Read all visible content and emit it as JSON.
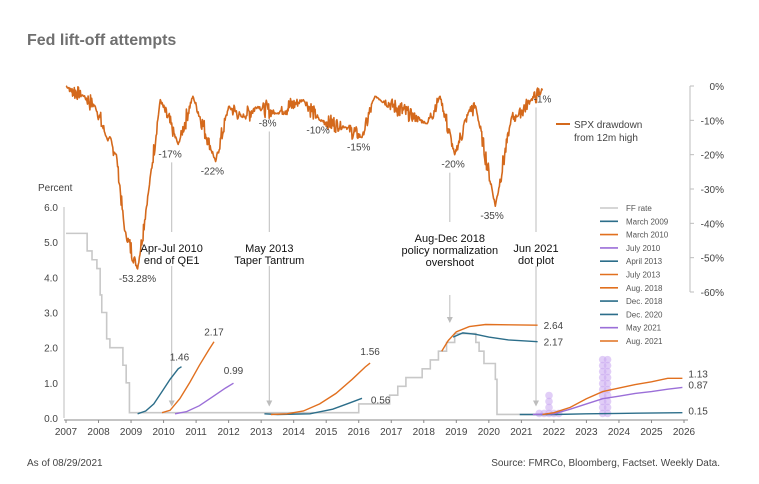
{
  "title": "Fed lift-off attempts",
  "as_of": "As of 08/29/2021",
  "source": "Source: FMRCo, Bloomberg, Factset. Weekly Data.",
  "colors": {
    "spx": "#d4691c",
    "ff_rate": "#c8c8c8",
    "march2009": "#2c6e8a",
    "march2010": "#e1701f",
    "july2010": "#9b6fd8",
    "april2013": "#2c6e8a",
    "july2013": "#e1701f",
    "aug2018": "#e1701f",
    "dec2018": "#2c6e8a",
    "dec2020": "#2c6e8a",
    "may2021": "#9b6fd8",
    "aug2021": "#e1701f",
    "dots": "#c8a6f0",
    "arrow": "#bdbdbd"
  },
  "chart_data": [
    {
      "type": "line",
      "name": "SPX drawdown",
      "legend": "SPX drawdown from 12m high",
      "legend_lines": [
        "SPX drawdown",
        "from 12m high"
      ],
      "ylim": [
        -60,
        0
      ],
      "yticks": [
        0,
        -10,
        -20,
        -30,
        -40,
        -50,
        -60
      ],
      "ytick_labels": [
        "0%",
        "-10%",
        "-20%",
        "-30%",
        "-40%",
        "-50%",
        "-60%"
      ],
      "troughs": [
        {
          "x": 2007.0,
          "y": 0
        },
        {
          "x": 2007.55,
          "y": -3
        },
        {
          "x": 2007.9,
          "y": -6
        },
        {
          "x": 2008.25,
          "y": -15
        },
        {
          "x": 2008.55,
          "y": -20
        },
        {
          "x": 2008.8,
          "y": -42
        },
        {
          "x": 2009.2,
          "y": -53.28
        },
        {
          "x": 2009.55,
          "y": -30
        },
        {
          "x": 2009.9,
          "y": -4
        },
        {
          "x": 2010.45,
          "y": -17
        },
        {
          "x": 2010.9,
          "y": -3
        },
        {
          "x": 2011.6,
          "y": -22
        },
        {
          "x": 2012.0,
          "y": -6
        },
        {
          "x": 2012.4,
          "y": -9
        },
        {
          "x": 2012.9,
          "y": -6
        },
        {
          "x": 2013.45,
          "y": -8
        },
        {
          "x": 2014.3,
          "y": -4
        },
        {
          "x": 2014.8,
          "y": -10
        },
        {
          "x": 2015.6,
          "y": -12
        },
        {
          "x": 2016.1,
          "y": -15
        },
        {
          "x": 2016.5,
          "y": -3
        },
        {
          "x": 2018.1,
          "y": -11
        },
        {
          "x": 2018.5,
          "y": -3
        },
        {
          "x": 2018.95,
          "y": -20
        },
        {
          "x": 2019.4,
          "y": -7
        },
        {
          "x": 2019.6,
          "y": -6
        },
        {
          "x": 2020.2,
          "y": -35
        },
        {
          "x": 2020.7,
          "y": -9
        },
        {
          "x": 2020.85,
          "y": -9
        },
        {
          "x": 2021.3,
          "y": -4
        },
        {
          "x": 2021.66,
          "y": -1
        }
      ],
      "labels": [
        {
          "text": "-53.28%",
          "x": 2009.2,
          "y": -53.28
        },
        {
          "text": "-17%",
          "x": 2010.2,
          "y": -17
        },
        {
          "text": "-22%",
          "x": 2011.5,
          "y": -22
        },
        {
          "text": "-8%",
          "x": 2013.2,
          "y": -8
        },
        {
          "text": "-10%",
          "x": 2014.75,
          "y": -10
        },
        {
          "text": "-15%",
          "x": 2016.0,
          "y": -15
        },
        {
          "text": "-20%",
          "x": 2018.9,
          "y": -20
        },
        {
          "text": "-35%",
          "x": 2020.1,
          "y": -35
        },
        {
          "text": "-1%",
          "x": 2021.65,
          "y": -1
        }
      ]
    },
    {
      "type": "line",
      "name": "Fed funds rate and market-implied paths",
      "ylabel": "Percent",
      "ylim": [
        0,
        6
      ],
      "yticks": [
        0,
        1,
        2,
        3,
        4,
        5,
        6
      ],
      "ytick_labels": [
        "0.0",
        "1.0",
        "2.0",
        "3.0",
        "4.0",
        "5.0",
        "6.0"
      ],
      "xlim": [
        2007,
        2026
      ],
      "xticks": [
        "2007",
        "2008",
        "2009",
        "2010",
        "2011",
        "2012",
        "2013",
        "2014",
        "2015",
        "2016",
        "2017",
        "2018",
        "2019",
        "2020",
        "2021",
        "2022",
        "2023",
        "2024",
        "2025",
        "2026"
      ],
      "series": [
        {
          "name": "FF rate",
          "color_key": "ff_rate",
          "style": "step",
          "points": [
            [
              2007.0,
              5.25
            ],
            [
              2007.6,
              5.25
            ],
            [
              2007.65,
              4.75
            ],
            [
              2007.8,
              4.5
            ],
            [
              2007.95,
              4.25
            ],
            [
              2008.05,
              3.5
            ],
            [
              2008.1,
              3.0
            ],
            [
              2008.25,
              2.25
            ],
            [
              2008.35,
              2.0
            ],
            [
              2008.75,
              1.5
            ],
            [
              2008.85,
              1.0
            ],
            [
              2008.95,
              0.15
            ],
            [
              2015.95,
              0.15
            ],
            [
              2016.0,
              0.4
            ],
            [
              2016.95,
              0.65
            ],
            [
              2017.2,
              0.9
            ],
            [
              2017.45,
              1.15
            ],
            [
              2017.95,
              1.4
            ],
            [
              2018.2,
              1.65
            ],
            [
              2018.45,
              1.9
            ],
            [
              2018.7,
              2.15
            ],
            [
              2018.95,
              2.4
            ],
            [
              2019.55,
              2.4
            ],
            [
              2019.6,
              2.15
            ],
            [
              2019.7,
              1.9
            ],
            [
              2019.85,
              1.55
            ],
            [
              2020.15,
              1.55
            ],
            [
              2020.2,
              1.1
            ],
            [
              2020.25,
              0.1
            ],
            [
              2021.66,
              0.1
            ]
          ]
        },
        {
          "name": "March 2009",
          "color_key": "march2009",
          "end_label": "1.46",
          "points": [
            [
              2009.2,
              0.12
            ],
            [
              2009.45,
              0.2
            ],
            [
              2009.7,
              0.4
            ],
            [
              2009.95,
              0.75
            ],
            [
              2010.2,
              1.1
            ],
            [
              2010.45,
              1.4
            ],
            [
              2010.55,
              1.46
            ]
          ]
        },
        {
          "name": "March 2010",
          "color_key": "march2010",
          "end_label": "2.17",
          "points": [
            [
              2009.95,
              0.15
            ],
            [
              2010.2,
              0.22
            ],
            [
              2010.5,
              0.55
            ],
            [
              2010.8,
              1.0
            ],
            [
              2011.1,
              1.5
            ],
            [
              2011.4,
              1.95
            ],
            [
              2011.55,
              2.17
            ]
          ]
        },
        {
          "name": "July 2010",
          "color_key": "july2010",
          "end_label": "0.99",
          "points": [
            [
              2010.35,
              0.12
            ],
            [
              2010.7,
              0.18
            ],
            [
              2011.1,
              0.35
            ],
            [
              2011.5,
              0.6
            ],
            [
              2011.9,
              0.85
            ],
            [
              2012.15,
              0.99
            ]
          ]
        },
        {
          "name": "April 2013",
          "color_key": "april2013",
          "end_label": "",
          "points": [
            [
              2013.1,
              0.12
            ],
            [
              2013.5,
              0.1
            ],
            [
              2014.5,
              0.12
            ],
            [
              2015.2,
              0.25
            ],
            [
              2015.7,
              0.42
            ],
            [
              2016.1,
              0.56
            ]
          ]
        },
        {
          "name": "July 2013",
          "color_key": "july2013",
          "end_label": "1.56",
          "points": [
            [
              2013.3,
              0.1
            ],
            [
              2013.8,
              0.12
            ],
            [
              2014.3,
              0.2
            ],
            [
              2014.8,
              0.4
            ],
            [
              2015.3,
              0.7
            ],
            [
              2015.8,
              1.1
            ],
            [
              2016.2,
              1.45
            ],
            [
              2016.35,
              1.56
            ]
          ]
        },
        {
          "name": "Aug. 2018",
          "color_key": "aug2018",
          "end_label": "2.64",
          "points": [
            [
              2018.55,
              1.9
            ],
            [
              2018.75,
              2.2
            ],
            [
              2019.0,
              2.45
            ],
            [
              2019.4,
              2.6
            ],
            [
              2019.9,
              2.66
            ],
            [
              2020.6,
              2.65
            ],
            [
              2021.5,
              2.64
            ]
          ]
        },
        {
          "name": "Dec. 2018",
          "color_key": "dec2018",
          "end_label": "2.17",
          "points": [
            [
              2018.9,
              2.3
            ],
            [
              2019.2,
              2.42
            ],
            [
              2019.6,
              2.38
            ],
            [
              2020.0,
              2.3
            ],
            [
              2020.6,
              2.22
            ],
            [
              2021.5,
              2.17
            ]
          ]
        },
        {
          "name": "Dec. 2020",
          "color_key": "dec2020",
          "end_label": "0.15",
          "points": [
            [
              2020.95,
              0.1
            ],
            [
              2022.0,
              0.1
            ],
            [
              2023.0,
              0.12
            ],
            [
              2024.0,
              0.13
            ],
            [
              2025.95,
              0.15
            ]
          ]
        },
        {
          "name": "May 2021",
          "color_key": "may2021",
          "end_label": "0.87",
          "points": [
            [
              2021.35,
              0.1
            ],
            [
              2022.0,
              0.12
            ],
            [
              2022.5,
              0.25
            ],
            [
              2023.0,
              0.4
            ],
            [
              2023.5,
              0.55
            ],
            [
              2024.0,
              0.62
            ],
            [
              2024.5,
              0.7
            ],
            [
              2025.0,
              0.75
            ],
            [
              2025.5,
              0.82
            ],
            [
              2025.95,
              0.87
            ]
          ]
        },
        {
          "name": "Aug. 2021",
          "color_key": "aug2021",
          "end_label": "1.13",
          "points": [
            [
              2021.65,
              0.1
            ],
            [
              2022.0,
              0.15
            ],
            [
              2022.5,
              0.3
            ],
            [
              2023.0,
              0.55
            ],
            [
              2023.5,
              0.75
            ],
            [
              2024.0,
              0.85
            ],
            [
              2024.5,
              0.95
            ],
            [
              2025.0,
              1.03
            ],
            [
              2025.5,
              1.13
            ],
            [
              2025.95,
              1.13
            ]
          ]
        }
      ],
      "end_labels_extra": [
        {
          "text": "0.56",
          "x": 2016.25,
          "y": 0.56
        }
      ],
      "dot_plot": {
        "color_key": "dots",
        "dots": [
          [
            2021.85,
            0.13
          ],
          [
            2021.85,
            0.3
          ],
          [
            2021.85,
            0.47
          ],
          [
            2021.85,
            0.64
          ],
          [
            2021.7,
            0.13
          ],
          [
            2022.0,
            0.13
          ],
          [
            2022.15,
            0.13
          ],
          [
            2021.55,
            0.13
          ],
          [
            2023.5,
            0.13
          ],
          [
            2023.5,
            0.3
          ],
          [
            2023.5,
            0.47
          ],
          [
            2023.5,
            0.64
          ],
          [
            2023.5,
            0.81
          ],
          [
            2023.5,
            0.98
          ],
          [
            2023.5,
            1.15
          ],
          [
            2023.5,
            1.32
          ],
          [
            2023.5,
            1.49
          ],
          [
            2023.5,
            1.66
          ],
          [
            2023.65,
            0.13
          ],
          [
            2023.65,
            0.3
          ],
          [
            2023.65,
            0.47
          ],
          [
            2023.65,
            0.64
          ],
          [
            2023.65,
            0.81
          ],
          [
            2023.65,
            0.98
          ],
          [
            2023.65,
            1.15
          ],
          [
            2023.65,
            1.32
          ],
          [
            2023.65,
            1.49
          ],
          [
            2023.65,
            1.66
          ]
        ]
      },
      "annotations": [
        {
          "lines": [
            "Apr-Jul 2010",
            "end of QE1"
          ],
          "x": 2010.25,
          "arrow_to": 0.3
        },
        {
          "lines": [
            "May 2013",
            "Taper Tantrum"
          ],
          "x": 2013.25,
          "arrow_to": 0.3
        },
        {
          "lines": [
            "Aug-Dec 2018",
            "policy normalization",
            "overshoot"
          ],
          "x": 2018.8,
          "arrow_to": 2.6
        },
        {
          "lines": [
            "Jun 2021",
            "dot plot"
          ],
          "x": 2021.45,
          "arrow_to": 0.3
        }
      ]
    }
  ],
  "legend": {
    "items": [
      {
        "label": "FF rate",
        "color_key": "ff_rate"
      },
      {
        "label": "March 2009",
        "color_key": "march2009"
      },
      {
        "label": "March 2010",
        "color_key": "march2010"
      },
      {
        "label": "July 2010",
        "color_key": "july2010"
      },
      {
        "label": "April 2013",
        "color_key": "april2013"
      },
      {
        "label": "July 2013",
        "color_key": "july2013"
      },
      {
        "label": "Aug. 2018",
        "color_key": "aug2018"
      },
      {
        "label": "Dec. 2018",
        "color_key": "dec2018"
      },
      {
        "label": "Dec. 2020",
        "color_key": "dec2020"
      },
      {
        "label": "May 2021",
        "color_key": "may2021"
      },
      {
        "label": "Aug. 2021",
        "color_key": "aug2021"
      }
    ]
  }
}
